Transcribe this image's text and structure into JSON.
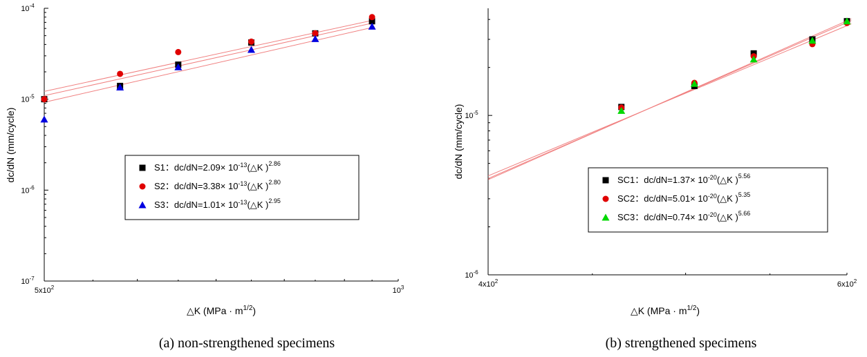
{
  "chart_data": [
    {
      "type": "scatter",
      "caption": "(a) non-strengthened specimens",
      "xlabel": "△K (MPa · m",
      "xlabel_sup": "1/2",
      "xlabel_end": ")",
      "ylabel": "dc/dN (mm/cycle)",
      "xscale": "log",
      "yscale": "log",
      "xlim": [
        500,
        1000
      ],
      "ylim": [
        1e-07,
        0.0001
      ],
      "x_ticks": [
        {
          "v": 500,
          "m": "5x10",
          "e": "2"
        },
        {
          "v": 1000,
          "m": "10",
          "e": "3"
        }
      ],
      "y_ticks": [
        {
          "v": 0.0001,
          "m": "10",
          "e": "-4"
        },
        {
          "v": 1e-05,
          "m": "10",
          "e": "-5"
        },
        {
          "v": 1e-06,
          "m": "10",
          "e": "-6"
        },
        {
          "v": 1e-07,
          "m": "10",
          "e": "-7"
        }
      ],
      "legend_position": "center-right",
      "series": [
        {
          "name": "S1",
          "marker": "square",
          "color": "#000000",
          "legend_pre": "S1：dc/dN=2.09× 10",
          "legend_exp1": "-13",
          "legend_mid": "(△K )",
          "legend_exp2": "2.86",
          "x": [
            500,
            580,
            650,
            750,
            850,
            950
          ],
          "y": [
            1e-05,
            1.4e-05,
            2.4e-05,
            4.2e-05,
            5.3e-05,
            7.2e-05
          ],
          "fit": {
            "c": 2.09e-13,
            "n": 2.86
          }
        },
        {
          "name": "S2",
          "marker": "circle",
          "color": "#e00000",
          "legend_pre": "S2：dc/dN=3.38× 10",
          "legend_exp1": "-13",
          "legend_mid": "(△K )",
          "legend_exp2": "2.80",
          "x": [
            500,
            580,
            650,
            750,
            850,
            950
          ],
          "y": [
            1e-05,
            1.9e-05,
            3.3e-05,
            4.3e-05,
            5.3e-05,
            8e-05
          ],
          "fit": {
            "c": 3.38e-13,
            "n": 2.8
          }
        },
        {
          "name": "S3",
          "marker": "triangle",
          "color": "#0000e0",
          "legend_pre": "S3：dc/dN=1.01× 10",
          "legend_exp1": "-13",
          "legend_mid": "(△K )",
          "legend_exp2": "2.95",
          "x": [
            500,
            580,
            650,
            750,
            850,
            950
          ],
          "y": [
            6e-06,
            1.35e-05,
            2.25e-05,
            3.5e-05,
            4.6e-05,
            6.3e-05
          ],
          "fit": {
            "c": 1.01e-13,
            "n": 2.95
          }
        }
      ]
    },
    {
      "type": "scatter",
      "caption": "(b) strengthened specimens",
      "xlabel": "△K (MPa · m",
      "xlabel_sup": "1/2",
      "xlabel_end": ")",
      "ylabel": "dc/dN (mm/cycle)",
      "xscale": "log",
      "yscale": "log",
      "xlim": [
        400,
        600
      ],
      "ylim": [
        1e-06,
        4.7e-05
      ],
      "x_ticks": [
        {
          "v": 400,
          "m": "4x10",
          "e": "2"
        },
        {
          "v": 600,
          "m": "6x10",
          "e": "2"
        }
      ],
      "y_ticks": [
        {
          "v": 1e-05,
          "m": "10",
          "e": "-5"
        },
        {
          "v": 1e-06,
          "m": "10",
          "e": "-6"
        }
      ],
      "legend_position": "bottom-right",
      "series": [
        {
          "name": "SC1",
          "marker": "square",
          "color": "#000000",
          "legend_pre": "SC1：dc/dN=1.37× 10",
          "legend_exp1": "-20",
          "legend_mid": "(△K )",
          "legend_exp2": "5.56",
          "x": [
            465,
            505,
            540,
            577,
            600
          ],
          "y": [
            1.13e-05,
            1.53e-05,
            2.45e-05,
            3e-05,
            3.9e-05
          ],
          "fit": {
            "c": 1.37e-20,
            "n": 5.56
          }
        },
        {
          "name": "SC2",
          "marker": "circle",
          "color": "#e00000",
          "legend_pre": "SC2：dc/dN=5.01× 10",
          "legend_exp1": "-20",
          "legend_mid": "(△K )",
          "legend_exp2": "5.35",
          "x": [
            465,
            505,
            540,
            577,
            600
          ],
          "y": [
            1.12e-05,
            1.6e-05,
            2.35e-05,
            2.8e-05,
            3.8e-05
          ],
          "fit": {
            "c": 5.01e-20,
            "n": 5.35
          }
        },
        {
          "name": "SC3",
          "marker": "triangle",
          "color": "#00d800",
          "legend_pre": "SC3：dc/dN=0.74× 10",
          "legend_exp1": "-20",
          "legend_mid": "(△K )",
          "legend_exp2": "5.66",
          "x": [
            465,
            505,
            540,
            577,
            600
          ],
          "y": [
            1.07e-05,
            1.58e-05,
            2.25e-05,
            2.95e-05,
            3.9e-05
          ],
          "fit": {
            "c": 7.4e-21,
            "n": 5.66
          }
        }
      ]
    }
  ]
}
